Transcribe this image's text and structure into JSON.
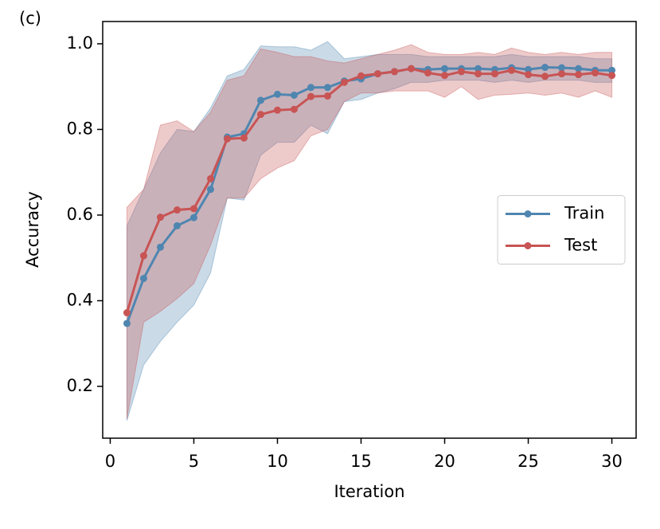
{
  "chart_data": {
    "type": "line",
    "annotation": "(c)",
    "x_label": "Iteration",
    "y_label": "Accuracy",
    "x": [
      1,
      2,
      3,
      4,
      5,
      6,
      7,
      8,
      9,
      10,
      11,
      12,
      13,
      14,
      15,
      16,
      17,
      18,
      19,
      20,
      21,
      22,
      23,
      24,
      25,
      26,
      27,
      28,
      29,
      30
    ],
    "xlim": [
      -0.45,
      31.45
    ],
    "xticks": [
      0,
      5,
      10,
      15,
      20,
      25,
      30
    ],
    "ylim": [
      0.079,
      1.052
    ],
    "yticks": [
      0.2,
      0.4,
      0.6,
      0.8,
      {
        "value": 1.0,
        "label": "1.0"
      }
    ],
    "legend": "center right",
    "series": [
      {
        "name": "Train",
        "color": "#4f86b0",
        "values": [
          0.347,
          0.452,
          0.525,
          0.575,
          0.594,
          0.66,
          0.782,
          0.79,
          0.868,
          0.882,
          0.88,
          0.898,
          0.898,
          0.913,
          0.918,
          0.93,
          0.935,
          0.942,
          0.94,
          0.942,
          0.942,
          0.942,
          0.94,
          0.944,
          0.94,
          0.945,
          0.944,
          0.942,
          0.938,
          0.938
        ],
        "upper": [
          0.575,
          0.66,
          0.745,
          0.8,
          0.795,
          0.85,
          0.925,
          0.94,
          0.995,
          0.993,
          0.993,
          0.985,
          1.005,
          0.965,
          0.97,
          0.975,
          0.975,
          0.975,
          0.97,
          0.97,
          0.97,
          0.97,
          0.97,
          0.975,
          0.97,
          0.97,
          0.97,
          0.97,
          0.965,
          0.965
        ],
        "lower": [
          0.12,
          0.25,
          0.305,
          0.35,
          0.39,
          0.465,
          0.64,
          0.635,
          0.74,
          0.77,
          0.77,
          0.81,
          0.79,
          0.865,
          0.87,
          0.885,
          0.895,
          0.91,
          0.91,
          0.915,
          0.915,
          0.915,
          0.91,
          0.915,
          0.91,
          0.915,
          0.915,
          0.915,
          0.91,
          0.91
        ]
      },
      {
        "name": "Test",
        "color": "#c85454",
        "values": [
          0.372,
          0.505,
          0.595,
          0.612,
          0.615,
          0.685,
          0.778,
          0.78,
          0.835,
          0.845,
          0.847,
          0.877,
          0.878,
          0.91,
          0.925,
          0.93,
          0.935,
          0.942,
          0.932,
          0.926,
          0.935,
          0.93,
          0.93,
          0.938,
          0.928,
          0.924,
          0.93,
          0.928,
          0.932,
          0.926
        ],
        "upper": [
          0.618,
          0.66,
          0.81,
          0.82,
          0.795,
          0.84,
          0.915,
          0.925,
          0.988,
          0.98,
          0.97,
          0.97,
          0.96,
          0.955,
          0.965,
          0.975,
          0.985,
          0.998,
          0.98,
          0.975,
          0.975,
          0.98,
          0.975,
          0.99,
          0.98,
          0.975,
          0.98,
          0.975,
          0.98,
          0.98
        ],
        "lower": [
          0.125,
          0.35,
          0.375,
          0.405,
          0.44,
          0.53,
          0.64,
          0.64,
          0.685,
          0.71,
          0.727,
          0.785,
          0.8,
          0.865,
          0.885,
          0.885,
          0.89,
          0.89,
          0.89,
          0.875,
          0.9,
          0.87,
          0.88,
          0.882,
          0.885,
          0.88,
          0.885,
          0.875,
          0.89,
          0.875
        ]
      }
    ]
  }
}
